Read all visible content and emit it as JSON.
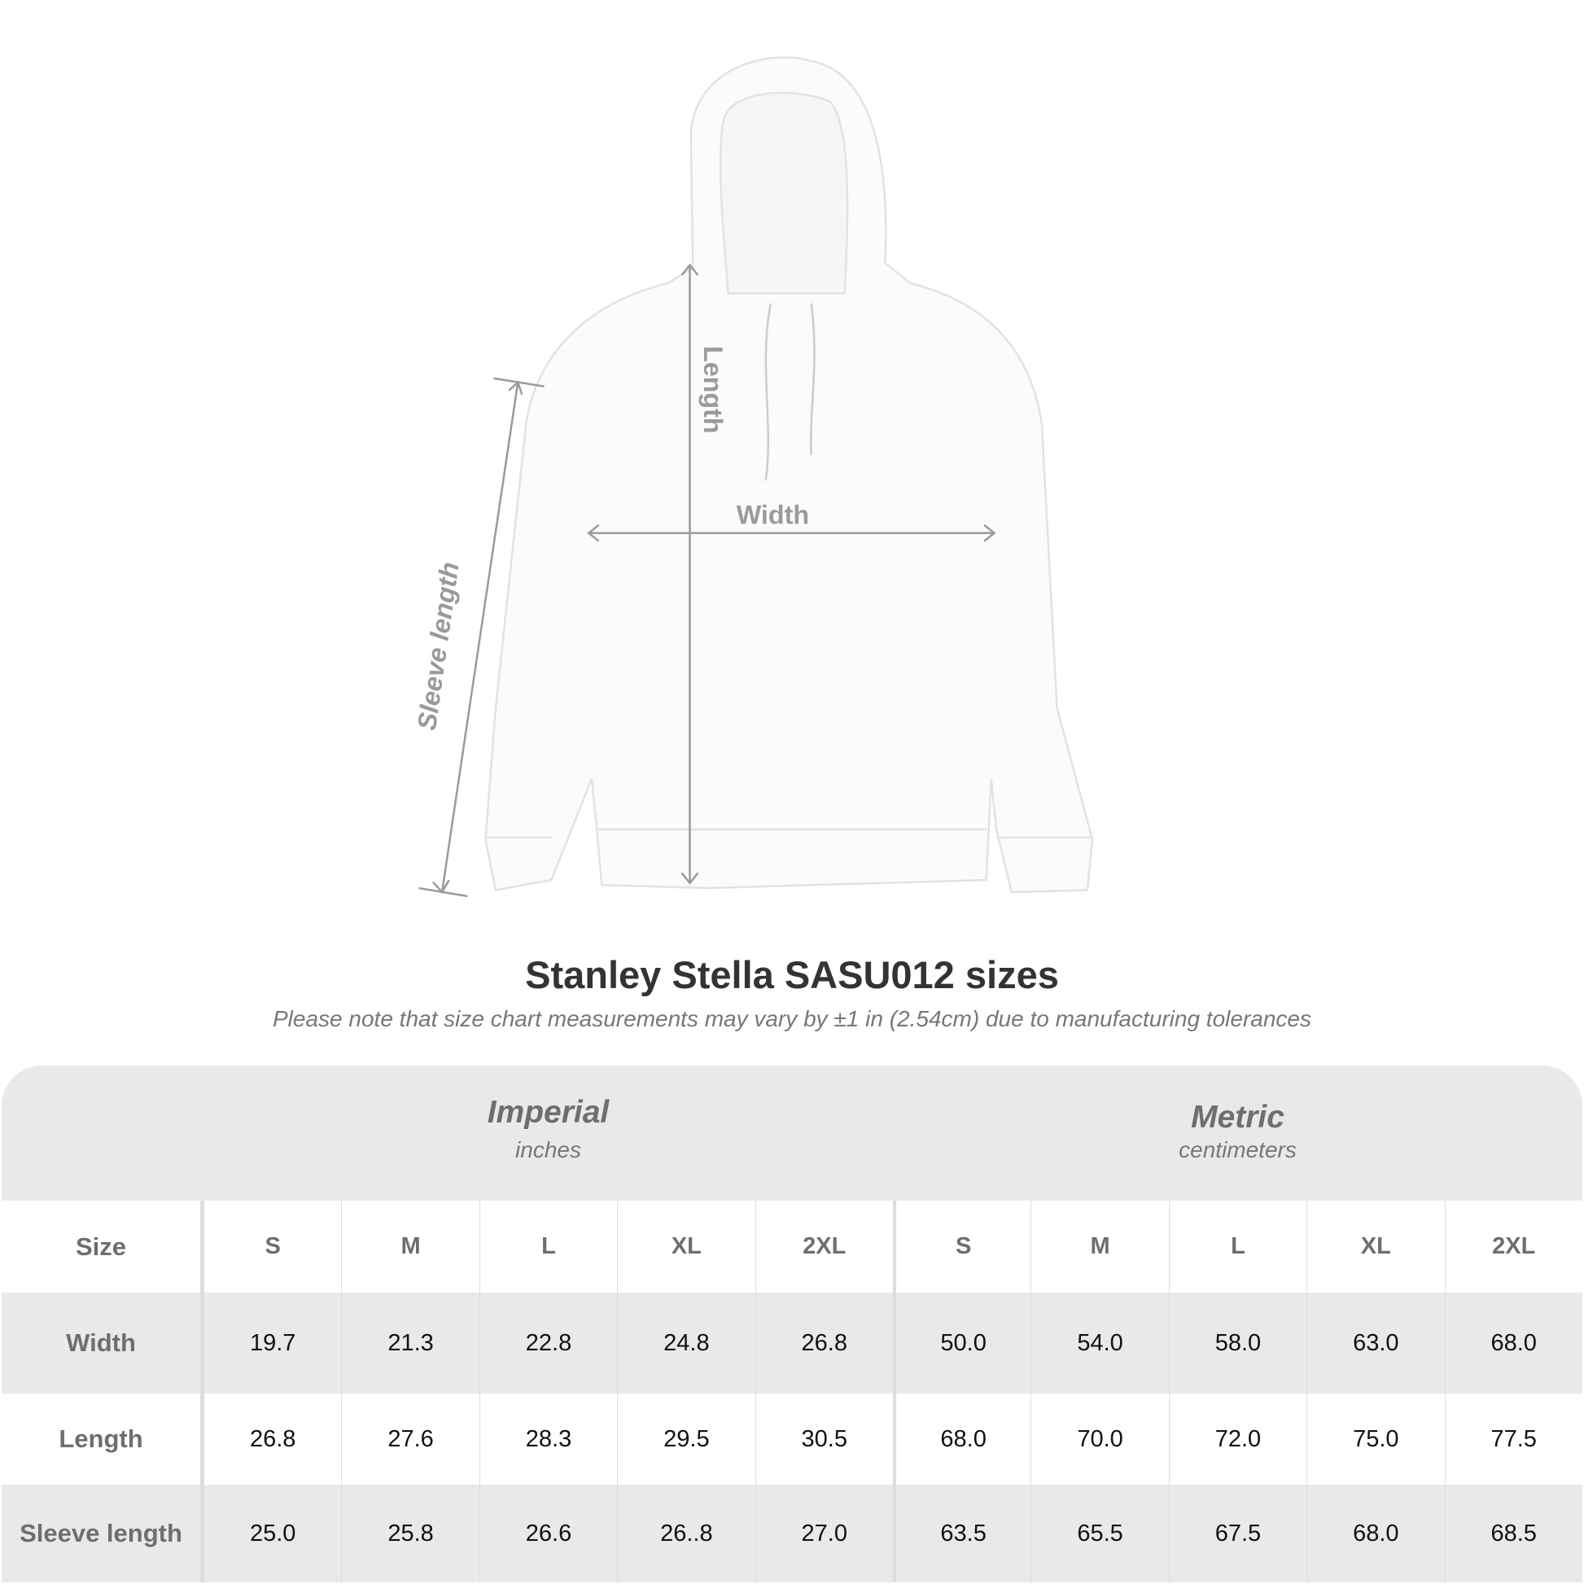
{
  "diagram": {
    "labels": {
      "length": "Length",
      "width": "Width",
      "sleeve": "Sleeve length"
    },
    "arrow_color": "#9a9a9a"
  },
  "title": "Stanley Stella SASU012  sizes",
  "subtitle": "Please note that size chart measurements may vary by ±1 in (2.54cm) due to manufacturing tolerances",
  "table": {
    "imperial": {
      "label": "Imperial",
      "unit": "inches"
    },
    "metric": {
      "label": "Metric",
      "unit": "centimeters"
    },
    "size_label": "Size",
    "sizes": [
      "S",
      "M",
      "L",
      "XL",
      "2XL"
    ],
    "rows": [
      {
        "label": "Width",
        "imperial": [
          "19.7",
          "21.3",
          "22.8",
          "24.8",
          "26.8"
        ],
        "metric": [
          "50.0",
          "54.0",
          "58.0",
          "63.0",
          "68.0"
        ]
      },
      {
        "label": "Length",
        "imperial": [
          "26.8",
          "27.6",
          "28.3",
          "29.5",
          "30.5"
        ],
        "metric": [
          "68.0",
          "70.0",
          "72.0",
          "75.0",
          "77.5"
        ]
      },
      {
        "label": "Sleeve length",
        "imperial": [
          "25.0",
          "25.8",
          "26.6",
          "26..8",
          "27.0"
        ],
        "metric": [
          "63.5",
          "65.5",
          "67.5",
          "68.0",
          "68.5"
        ]
      }
    ]
  }
}
